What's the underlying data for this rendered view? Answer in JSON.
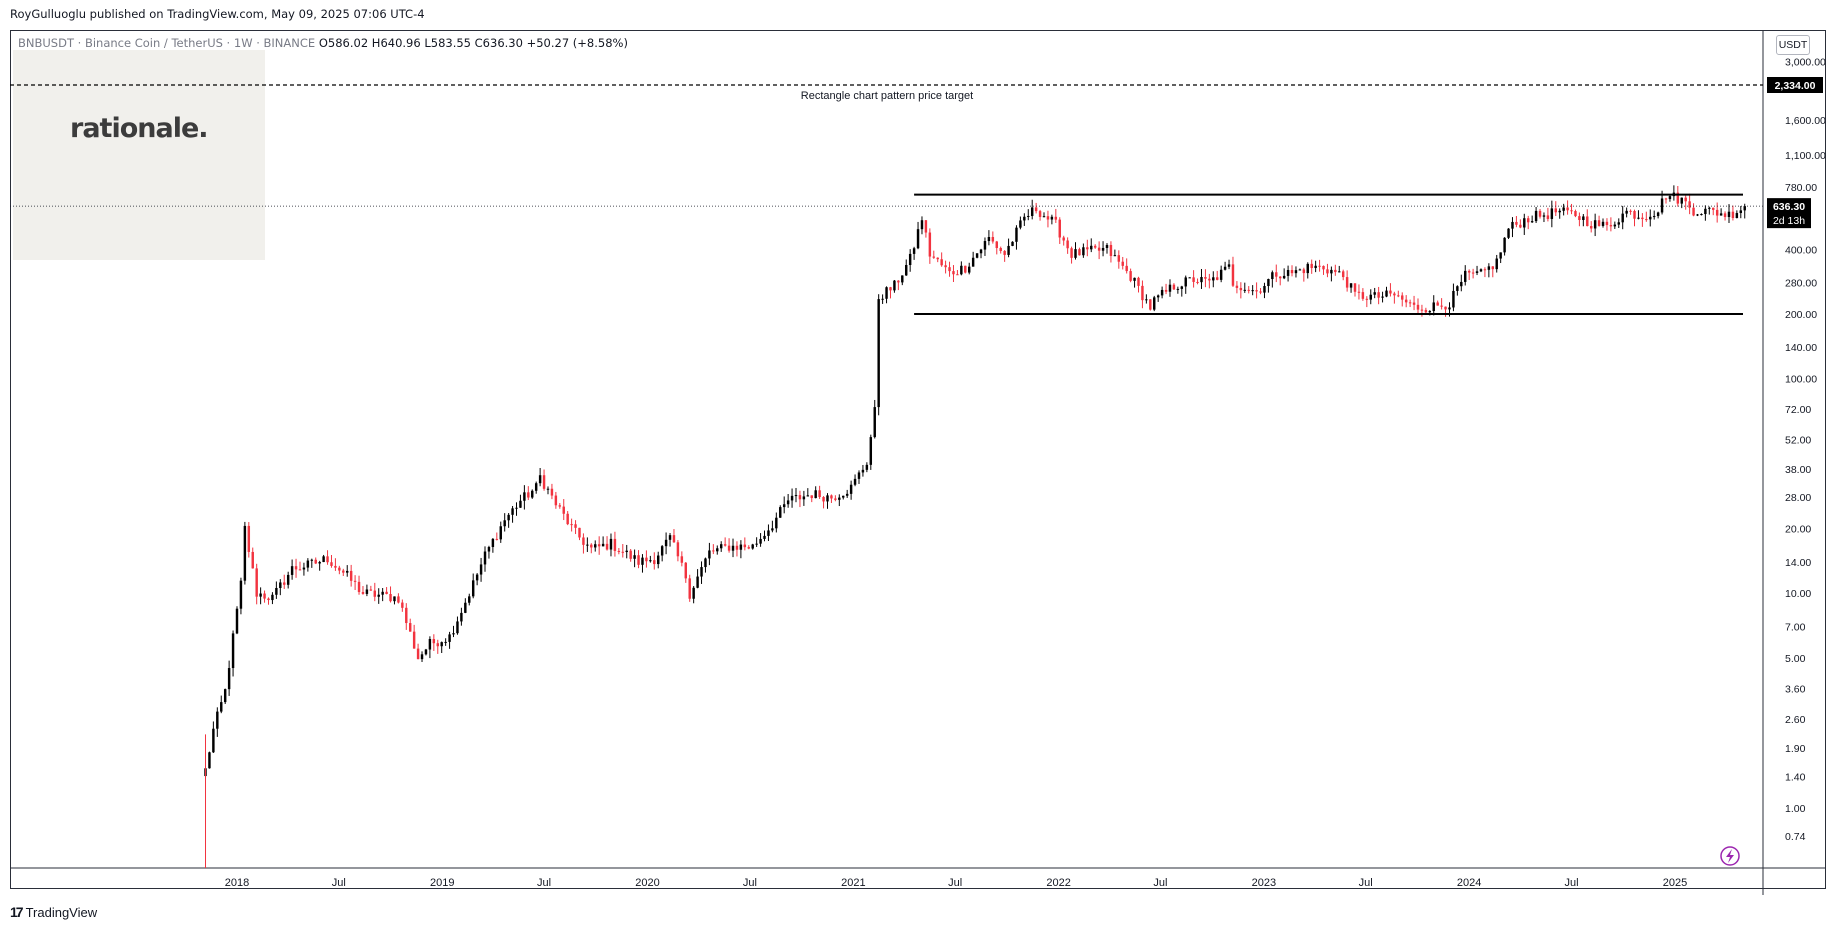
{
  "header": {
    "published": "RoyGulluoglu published on TradingView.com, May 09, 2025 07:06 UTC-4"
  },
  "symbol_info": {
    "symbol": "BNBUSDT · Binance Coin / TetherUS · 1W · BINANCE",
    "open": "O586.02",
    "high": "H640.96",
    "low": "L583.55",
    "close": "C636.30",
    "change": "+50.27 (+8.58%)"
  },
  "watermark": {
    "logo_text": "rationale."
  },
  "price_axis": {
    "currency": "USDT",
    "current_price": "636.30",
    "countdown": "2d 13h",
    "target_label": "2,334.00"
  },
  "annotation": {
    "target_text": "Rectangle chart pattern price target"
  },
  "footer": {
    "brand": "TradingView"
  },
  "colors": {
    "up": "#000000",
    "down": "#f2333f",
    "axis_text": "#131722",
    "price_tag_bg": "#000000",
    "badge": "#9c27b0"
  },
  "chart_data": {
    "type": "candlestick",
    "timeframe": "1W",
    "y_scale": "log",
    "y_ticks": [
      "3,000.00",
      "2,334.00",
      "1,600.00",
      "1,100.00",
      "780.00",
      "400.00",
      "280.00",
      "200.00",
      "140.00",
      "100.00",
      "72.00",
      "52.00",
      "38.00",
      "28.00",
      "20.00",
      "14.00",
      "10.00",
      "7.00",
      "5.00",
      "3.60",
      "2.60",
      "1.90",
      "1.40",
      "1.00",
      "0.74"
    ],
    "x_ticks": [
      "2018",
      "Jul",
      "2019",
      "Jul",
      "2020",
      "Jul",
      "2021",
      "Jul",
      "2022",
      "Jul",
      "2023",
      "Jul",
      "2024",
      "Jul",
      "2025"
    ],
    "price_path_dates": [
      "2017-11-06",
      "2017-11-20",
      "2017-12-11",
      "2018-01-08",
      "2018-01-15",
      "2018-02-05",
      "2018-03-05",
      "2018-04-09",
      "2018-05-07",
      "2018-06-11",
      "2018-07-16",
      "2018-08-13",
      "2018-09-10",
      "2018-10-15",
      "2018-11-19",
      "2018-12-10",
      "2019-01-14",
      "2019-02-18",
      "2019-03-18",
      "2019-04-22",
      "2019-05-20",
      "2019-06-17",
      "2019-06-24",
      "2019-07-22",
      "2019-08-26",
      "2019-09-23",
      "2019-10-28",
      "2019-12-16",
      "2020-01-13",
      "2020-02-10",
      "2020-03-09",
      "2020-03-16",
      "2020-04-20",
      "2020-05-25",
      "2020-07-06",
      "2020-08-10",
      "2020-09-07",
      "2020-10-19",
      "2020-11-23",
      "2020-12-28",
      "2021-01-25",
      "2021-02-08",
      "2021-02-15",
      "2021-03-15",
      "2021-04-12",
      "2021-05-03",
      "2021-05-17",
      "2021-06-21",
      "2021-07-19",
      "2021-08-30",
      "2021-09-27",
      "2021-11-01",
      "2021-11-22",
      "2021-12-27",
      "2022-01-24",
      "2022-02-21",
      "2022-03-28",
      "2022-05-09",
      "2022-06-13",
      "2022-06-20",
      "2022-07-25",
      "2022-08-29",
      "2022-09-26",
      "2022-10-31",
      "2022-11-07",
      "2022-12-19",
      "2023-01-23",
      "2023-02-20",
      "2023-03-20",
      "2023-04-17",
      "2023-05-22",
      "2023-06-12",
      "2023-07-17",
      "2023-08-21",
      "2023-09-25",
      "2023-10-23",
      "2023-11-27",
      "2023-12-25",
      "2024-01-22",
      "2024-02-19",
      "2024-03-11",
      "2024-04-15",
      "2024-05-27",
      "2024-06-03",
      "2024-07-08",
      "2024-08-05",
      "2024-09-02",
      "2024-10-07",
      "2024-11-04",
      "2024-12-02",
      "2024-12-16",
      "2025-01-13",
      "2025-02-03",
      "2025-03-10",
      "2025-04-07",
      "2025-05-05"
    ],
    "price_path_closes": [
      1.5,
      2.3,
      3.5,
      11,
      20,
      10,
      9.5,
      13,
      13.5,
      14.5,
      12,
      10,
      9.8,
      9.5,
      5,
      5.8,
      6.3,
      10,
      15,
      22,
      27,
      31,
      35,
      26,
      19,
      16,
      17,
      14,
      14.5,
      18,
      12,
      10,
      15.5,
      16.5,
      16.5,
      21,
      27,
      29,
      28,
      31,
      41,
      70,
      240,
      270,
      360,
      560,
      380,
      310,
      330,
      450,
      380,
      560,
      620,
      520,
      380,
      390,
      400,
      300,
      215,
      230,
      270,
      290,
      280,
      330,
      280,
      255,
      310,
      310,
      330,
      330,
      300,
      245,
      240,
      245,
      215,
      215,
      225,
      300,
      305,
      350,
      500,
      560,
      590,
      600,
      580,
      530,
      510,
      600,
      570,
      610,
      720,
      680,
      610,
      600,
      580,
      636.3
    ],
    "rectangle_resistance": 720,
    "rectangle_support": 200,
    "price_target": 2334,
    "last_close": 636.3
  }
}
